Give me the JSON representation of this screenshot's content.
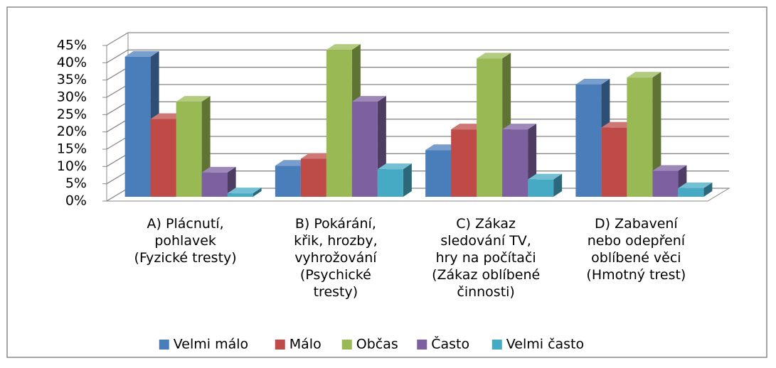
{
  "chart_data": {
    "type": "bar3d",
    "categories": [
      "A) Plácnutí,\npohlavek\n(Fyzické tresty)",
      "B) Pokárání,\nkřik, hrozby,\nvyhrožování\n(Psychické\ntresty)",
      "C) Zákaz\nsledování TV,\nhry na počítači\n(Zákaz oblíbené\nčinnosti)",
      "D) Zabavení\nnebo odepření\noblíbené věci\n(Hmotný trest)"
    ],
    "series": [
      {
        "name": "Velmi málo",
        "color": "#4a7ebb",
        "values": [
          40.5,
          9,
          13.5,
          32.5
        ]
      },
      {
        "name": "Málo",
        "color": "#be4b48",
        "values": [
          22.5,
          11,
          19.5,
          20
        ]
      },
      {
        "name": "Občas",
        "color": "#98b954",
        "values": [
          27.5,
          42.5,
          40,
          34.5
        ]
      },
      {
        "name": "Často",
        "color": "#7d60a0",
        "values": [
          7,
          27.5,
          19.5,
          7.5
        ]
      },
      {
        "name": "Velmi často",
        "color": "#46aac5",
        "values": [
          1,
          8,
          5,
          2.5
        ]
      }
    ],
    "ylim": [
      0,
      45
    ],
    "yticks": [
      {
        "value": 0,
        "label": "0%"
      },
      {
        "value": 5,
        "label": "5%"
      },
      {
        "value": 10,
        "label": "10%"
      },
      {
        "value": 15,
        "label": "15%"
      },
      {
        "value": 20,
        "label": "20%"
      },
      {
        "value": 25,
        "label": "25%"
      },
      {
        "value": 30,
        "label": "30%"
      },
      {
        "value": 35,
        "label": "35%"
      },
      {
        "value": 40,
        "label": "40%"
      },
      {
        "value": 45,
        "label": "45%"
      }
    ],
    "grid": true,
    "legend": "bottom"
  }
}
